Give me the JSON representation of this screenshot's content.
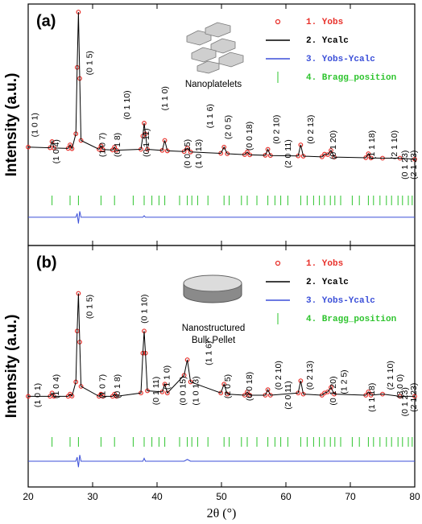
{
  "chart_data": [
    {
      "type": "line",
      "panel_label": "(a)",
      "inset_label": [
        "Nanoplatelets"
      ],
      "ylabel": "Intensity (a.u.)",
      "xlim": [
        20,
        80
      ],
      "xticks": [
        20,
        30,
        40,
        50,
        60,
        70,
        80
      ],
      "ylim": [
        0,
        100
      ],
      "x": [
        20,
        23.4,
        23.7,
        24.0,
        26.2,
        26.5,
        26.8,
        27.4,
        27.6,
        27.8,
        28.0,
        28.2,
        31.0,
        31.3,
        31.6,
        33.1,
        33.4,
        33.7,
        37.5,
        37.8,
        38.0,
        38.2,
        38.5,
        40.8,
        41.2,
        41.6,
        44.2,
        44.7,
        45.2,
        49.9,
        50.4,
        50.9,
        53.6,
        54.0,
        54.4,
        56.8,
        57.2,
        57.6,
        61.9,
        62.3,
        62.7,
        65.6,
        66.0,
        66.5,
        67.0,
        67.5,
        72.4,
        72.8,
        73.2,
        75.0,
        77.7,
        80
      ],
      "series": [
        {
          "name": "1. Yobs",
          "color": "#e8302a",
          "marker": "circle",
          "values": [
            39,
            38.7,
            41.5,
            38.6,
            38.4,
            40,
            38.3,
            45,
            75,
            100,
            70,
            42,
            38,
            39.5,
            37.9,
            37.7,
            39,
            37.6,
            38,
            44,
            49.8,
            45,
            38,
            37.5,
            42,
            37.3,
            37,
            38.5,
            36.8,
            36.2,
            39,
            36,
            35.6,
            36.8,
            35.5,
            35.3,
            38,
            35.2,
            35,
            40,
            34.9,
            34.6,
            35.8,
            35.6,
            37.5,
            34.5,
            34.2,
            36,
            34.1,
            34,
            34,
            33.5
          ]
        },
        {
          "name": "2. Ycalc",
          "color": "#000000",
          "values": [
            39,
            38.7,
            41.5,
            38.6,
            38.4,
            40,
            38.3,
            45,
            75,
            100,
            70,
            42,
            38,
            39.5,
            37.9,
            37.7,
            39,
            37.6,
            38,
            44,
            49.8,
            45,
            38,
            37.5,
            42,
            37.3,
            37,
            38.5,
            36.8,
            36.2,
            39,
            36,
            35.6,
            36.8,
            35.5,
            35.3,
            38,
            35.2,
            35,
            40,
            34.9,
            34.6,
            35.8,
            35.6,
            37.5,
            34.5,
            34.2,
            36,
            34.1,
            34,
            34,
            33.5
          ]
        },
        {
          "name": "3. Yobs-Ycalc",
          "color": "#3b4fd8",
          "values": [
            7.3,
            7.3,
            7.3,
            7.3,
            7.3,
            7.3,
            7.3,
            7.3,
            9,
            4.5,
            10,
            7.3,
            7.3,
            7.3,
            7.3,
            7.3,
            7.3,
            7.3,
            7.3,
            7.3,
            8,
            7.3,
            7.3,
            7.3,
            7.3,
            7.3,
            7.3,
            7.3,
            7.3,
            7.3,
            7.3,
            7.3,
            7.3,
            7.3,
            7.3,
            7.3,
            7.3,
            7.3,
            7.3,
            7.3,
            7.3,
            7.3,
            7.3,
            7.3,
            7.3,
            7.3,
            7.3,
            7.3,
            7.3,
            7.3,
            7.3,
            7.3
          ]
        }
      ],
      "bragg": {
        "name": "4. Bragg_position",
        "color": "#2ec42e",
        "positions": [
          23.7,
          26.5,
          27.8,
          31.3,
          33.4,
          36.3,
          38.0,
          39.2,
          40.3,
          41.2,
          43.5,
          44.7,
          45.4,
          46.3,
          47.9,
          50.4,
          51.2,
          53.1,
          54.0,
          55.5,
          57.2,
          58.3,
          59.2,
          60.3,
          62.3,
          63.3,
          64.3,
          65.2,
          66.0,
          66.9,
          67.6,
          68.5,
          70.3,
          71.4,
          72.8,
          73.6,
          74.6,
          75.6,
          76.4,
          77.4,
          78.1,
          79.0,
          79.6
        ]
      },
      "annotations": [
        {
          "text": "(1 0 1)",
          "x": 21.1,
          "y": 49
        },
        {
          "text": "(1 0 4)",
          "x": 24.4,
          "y": 37
        },
        {
          "text": "(0 1 5)",
          "x": 29.6,
          "y": 77
        },
        {
          "text": "(1 0 7)",
          "x": 31.6,
          "y": 40
        },
        {
          "text": "(0 1 8)",
          "x": 33.9,
          "y": 40
        },
        {
          "text": "(0 1 10)",
          "x": 35.4,
          "y": 58
        },
        {
          "text": "(0 1 11)",
          "x": 38.4,
          "y": 41
        },
        {
          "text": "(1 1 0)",
          "x": 41.3,
          "y": 61
        },
        {
          "text": "(0 0 15)",
          "x": 44.8,
          "y": 36
        },
        {
          "text": "(1 0 13)",
          "x": 46.5,
          "y": 36
        },
        {
          "text": "(1 1 6)",
          "x": 48.3,
          "y": 53
        },
        {
          "text": "(2 0 5)",
          "x": 51.1,
          "y": 48
        },
        {
          "text": "(0 0 18)",
          "x": 54.4,
          "y": 44
        },
        {
          "text": "(0 2 10)",
          "x": 58.6,
          "y": 47
        },
        {
          "text": "(2 0 11)",
          "x": 60.4,
          "y": 36
        },
        {
          "text": "(0 2 13)",
          "x": 63.9,
          "y": 47
        },
        {
          "text": "(0 1 20)",
          "x": 67.4,
          "y": 40
        },
        {
          "text": "(1 1 18)",
          "x": 73.4,
          "y": 40
        },
        {
          "text": "(2 1 10)",
          "x": 76.9,
          "y": 40
        },
        {
          "text": "(0 1 23)",
          "x": 78.5,
          "y": 31
        },
        {
          "text": "(2 1 23)",
          "x": 79.9,
          "y": 31
        }
      ]
    },
    {
      "type": "line",
      "panel_label": "(b)",
      "inset_label": [
        "Nanostructured",
        "Bulk Pellet"
      ],
      "ylabel": "Intensity (a.u.)",
      "xlabel": "2θ (°)",
      "xlim": [
        20,
        80
      ],
      "xticks": [
        20,
        30,
        40,
        50,
        60,
        70,
        80
      ],
      "ylim": [
        0,
        100
      ],
      "x": [
        20,
        23.4,
        23.7,
        24.0,
        26.2,
        26.5,
        26.8,
        27.4,
        27.6,
        27.8,
        28.0,
        28.2,
        31.0,
        31.3,
        31.6,
        33.1,
        33.4,
        33.7,
        37.5,
        37.8,
        38.0,
        38.2,
        38.5,
        40.8,
        41.2,
        41.6,
        44.2,
        44.7,
        45.2,
        49.9,
        50.4,
        50.9,
        53.6,
        54.0,
        54.4,
        56.8,
        57.2,
        57.6,
        61.9,
        62.3,
        62.7,
        65.6,
        66.0,
        66.5,
        67.0,
        67.5,
        72.4,
        72.8,
        73.2,
        75.0,
        77.7,
        80
      ],
      "series": [
        {
          "name": "1. Yobs",
          "color": "#e8302a",
          "marker": "circle",
          "values": [
            35.5,
            35.5,
            37,
            35.5,
            35.5,
            36.5,
            35.6,
            42,
            65,
            82,
            60,
            40,
            35.5,
            36.5,
            35.5,
            35.5,
            36.5,
            35.5,
            37,
            55,
            65,
            55,
            38,
            37.5,
            41,
            37,
            45,
            52,
            42,
            37,
            41,
            36.5,
            36,
            37.5,
            36,
            36,
            38.5,
            36,
            37,
            42.5,
            36.5,
            36,
            37,
            37.5,
            39.5,
            36.5,
            36,
            37.5,
            36,
            36.5,
            35.5,
            35.5
          ]
        },
        {
          "name": "2. Ycalc",
          "color": "#000000",
          "values": [
            35.5,
            35.5,
            37,
            35.5,
            35.5,
            36.5,
            35.6,
            42,
            65,
            82,
            60,
            40,
            35.5,
            36.5,
            35.5,
            35.5,
            36.5,
            35.5,
            37,
            55,
            65,
            55,
            38,
            37.5,
            41,
            37,
            45,
            52,
            42,
            37,
            41,
            36.5,
            36,
            37.5,
            36,
            36,
            38.5,
            36,
            37,
            42.5,
            36.5,
            36,
            37,
            37.5,
            39.5,
            36.5,
            36,
            37.5,
            36,
            36.5,
            35.5,
            35.5
          ]
        },
        {
          "name": "3. Yobs-Ycalc",
          "color": "#3b4fd8",
          "values": [
            6.2,
            6.2,
            6.2,
            6.2,
            6.2,
            6.2,
            6.2,
            6.2,
            8,
            3.5,
            9,
            6.2,
            6.2,
            6.2,
            6.2,
            6.2,
            6.2,
            6.2,
            6.2,
            6.2,
            7.5,
            6.2,
            6.2,
            6.2,
            6.2,
            6.2,
            6.2,
            7,
            6.2,
            6.2,
            6.2,
            6.2,
            6.2,
            6.2,
            6.2,
            6.2,
            6.2,
            6.2,
            6.2,
            6.2,
            6.2,
            6.2,
            6.2,
            6.2,
            6.2,
            6.2,
            6.2,
            6.2,
            6.2,
            6.2,
            6.2,
            6.2
          ]
        }
      ],
      "bragg": {
        "name": "4. Bragg_position",
        "color": "#2ec42e",
        "positions": [
          23.7,
          26.5,
          27.8,
          31.3,
          33.4,
          36.3,
          38.0,
          39.2,
          40.3,
          41.2,
          43.5,
          44.7,
          45.4,
          46.3,
          47.9,
          50.4,
          51.2,
          53.1,
          54.0,
          55.5,
          57.2,
          58.3,
          59.2,
          60.3,
          62.3,
          63.3,
          64.3,
          65.2,
          66.0,
          66.9,
          67.6,
          68.5,
          70.3,
          71.4,
          72.8,
          73.6,
          74.6,
          75.6,
          76.4,
          77.4,
          78.1,
          79.0,
          79.6
        ]
      },
      "annotations": [
        {
          "text": "(1 0 1)",
          "x": 21.5,
          "y": 36
        },
        {
          "text": "(1 0 4)",
          "x": 24.4,
          "y": 40
        },
        {
          "text": "(0 1 5)",
          "x": 29.6,
          "y": 76
        },
        {
          "text": "(1 0 7)",
          "x": 31.6,
          "y": 40
        },
        {
          "text": "(0 1 8)",
          "x": 33.9,
          "y": 40
        },
        {
          "text": "(0 1 10)",
          "x": 38.1,
          "y": 75
        },
        {
          "text": "(0 1 11)",
          "x": 39.9,
          "y": 38
        },
        {
          "text": "(1 1 0)",
          "x": 41.6,
          "y": 44
        },
        {
          "text": "(0 0 15)",
          "x": 44.1,
          "y": 38
        },
        {
          "text": "(1 0 13)",
          "x": 46.1,
          "y": 38
        },
        {
          "text": "(1 1 6)",
          "x": 48.1,
          "y": 55
        },
        {
          "text": "(2 0 5)",
          "x": 51.0,
          "y": 40
        },
        {
          "text": "(0 0 18)",
          "x": 54.4,
          "y": 40
        },
        {
          "text": "(0 2 10)",
          "x": 58.9,
          "y": 45
        },
        {
          "text": "(2 0 11)",
          "x": 60.4,
          "y": 36
        },
        {
          "text": "(0 2 13)",
          "x": 63.8,
          "y": 45
        },
        {
          "text": "(0 1 20)",
          "x": 67.4,
          "y": 38
        },
        {
          "text": "(1 2 5)",
          "x": 69.1,
          "y": 42
        },
        {
          "text": "(1 1 18)",
          "x": 73.4,
          "y": 35
        },
        {
          "text": "(2 1 10)",
          "x": 76.3,
          "y": 45
        },
        {
          "text": "(3 0 0)",
          "x": 77.8,
          "y": 40
        },
        {
          "text": "(0 1 23)",
          "x": 78.5,
          "y": 33
        },
        {
          "text": "(2 1 23)",
          "x": 79.9,
          "y": 35
        }
      ]
    }
  ]
}
